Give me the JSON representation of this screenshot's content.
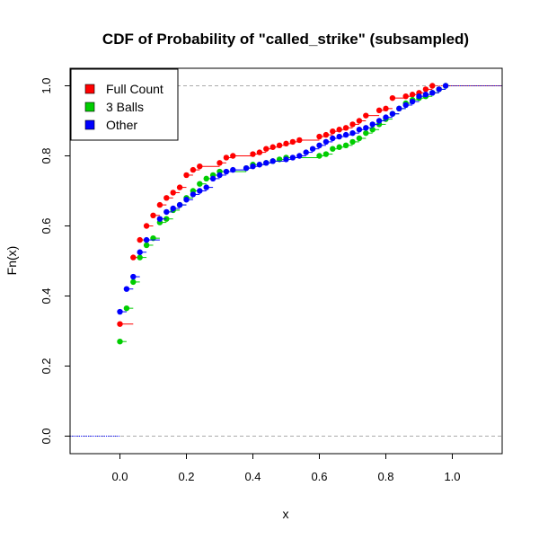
{
  "chart_data": {
    "type": "step",
    "title": "CDF of Probability of \"called_strike\" (subsampled)",
    "xlabel": "x",
    "ylabel": "Fn(x)",
    "xlim": [
      -0.15,
      1.15
    ],
    "ylim": [
      -0.05,
      1.05
    ],
    "xticks": [
      0.0,
      0.2,
      0.4,
      0.6,
      0.8,
      1.0
    ],
    "xtick_labels": [
      "0.0",
      "0.2",
      "0.4",
      "0.6",
      "0.8",
      "1.0"
    ],
    "yticks": [
      0.0,
      0.2,
      0.4,
      0.6,
      0.8,
      1.0
    ],
    "ytick_labels": [
      "0.0",
      "0.2",
      "0.4",
      "0.6",
      "0.8",
      "1.0"
    ],
    "grid": false,
    "reference_lines_y": [
      0,
      1
    ],
    "legend": {
      "position": "top-left"
    },
    "series": [
      {
        "name": "Full Count",
        "color": "#ff0000",
        "x": [
          0.0,
          0.04,
          0.06,
          0.08,
          0.1,
          0.12,
          0.14,
          0.16,
          0.18,
          0.2,
          0.22,
          0.24,
          0.3,
          0.32,
          0.34,
          0.4,
          0.42,
          0.44,
          0.46,
          0.48,
          0.5,
          0.52,
          0.54,
          0.6,
          0.62,
          0.64,
          0.66,
          0.68,
          0.7,
          0.72,
          0.74,
          0.78,
          0.8,
          0.82,
          0.86,
          0.88,
          0.9,
          0.92,
          0.94
        ],
        "y": [
          0.32,
          0.51,
          0.56,
          0.6,
          0.63,
          0.66,
          0.68,
          0.695,
          0.71,
          0.745,
          0.76,
          0.77,
          0.78,
          0.795,
          0.8,
          0.805,
          0.81,
          0.82,
          0.825,
          0.83,
          0.835,
          0.84,
          0.845,
          0.855,
          0.86,
          0.87,
          0.875,
          0.88,
          0.89,
          0.9,
          0.915,
          0.93,
          0.935,
          0.965,
          0.97,
          0.975,
          0.98,
          0.99,
          1.0
        ]
      },
      {
        "name": "3 Balls",
        "color": "#00cd00",
        "x": [
          0.0,
          0.02,
          0.04,
          0.06,
          0.08,
          0.1,
          0.12,
          0.14,
          0.16,
          0.18,
          0.2,
          0.22,
          0.24,
          0.26,
          0.28,
          0.3,
          0.38,
          0.4,
          0.44,
          0.46,
          0.48,
          0.5,
          0.6,
          0.62,
          0.64,
          0.66,
          0.68,
          0.7,
          0.72,
          0.74,
          0.76,
          0.78,
          0.8,
          0.82,
          0.84,
          0.86,
          0.88,
          0.9,
          0.92,
          0.94,
          0.96,
          0.98
        ],
        "y": [
          0.27,
          0.365,
          0.44,
          0.51,
          0.545,
          0.565,
          0.61,
          0.62,
          0.645,
          0.66,
          0.68,
          0.7,
          0.72,
          0.735,
          0.745,
          0.755,
          0.765,
          0.775,
          0.78,
          0.785,
          0.79,
          0.795,
          0.8,
          0.805,
          0.82,
          0.825,
          0.83,
          0.84,
          0.85,
          0.865,
          0.875,
          0.89,
          0.905,
          0.92,
          0.935,
          0.95,
          0.96,
          0.965,
          0.97,
          0.98,
          0.99,
          1.0
        ]
      },
      {
        "name": "Other",
        "color": "#0000ff",
        "x": [
          0.0,
          0.02,
          0.04,
          0.06,
          0.08,
          0.12,
          0.14,
          0.16,
          0.18,
          0.2,
          0.22,
          0.24,
          0.26,
          0.28,
          0.3,
          0.32,
          0.34,
          0.38,
          0.4,
          0.42,
          0.44,
          0.46,
          0.5,
          0.52,
          0.54,
          0.56,
          0.58,
          0.6,
          0.62,
          0.64,
          0.66,
          0.68,
          0.7,
          0.72,
          0.74,
          0.76,
          0.78,
          0.8,
          0.82,
          0.84,
          0.86,
          0.88,
          0.9,
          0.92,
          0.94,
          0.96,
          0.98
        ],
        "y": [
          0.355,
          0.42,
          0.455,
          0.525,
          0.56,
          0.62,
          0.64,
          0.65,
          0.66,
          0.675,
          0.69,
          0.7,
          0.71,
          0.735,
          0.745,
          0.755,
          0.76,
          0.765,
          0.77,
          0.775,
          0.78,
          0.785,
          0.79,
          0.795,
          0.8,
          0.81,
          0.82,
          0.83,
          0.84,
          0.85,
          0.855,
          0.86,
          0.865,
          0.875,
          0.88,
          0.89,
          0.9,
          0.91,
          0.92,
          0.935,
          0.945,
          0.955,
          0.97,
          0.975,
          0.98,
          0.99,
          1.0
        ]
      }
    ]
  }
}
